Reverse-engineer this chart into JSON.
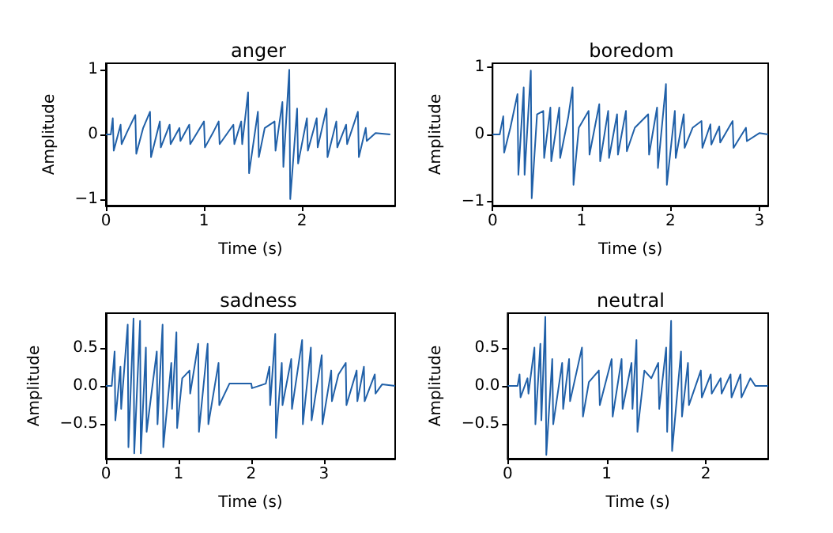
{
  "chart_data": [
    {
      "type": "line",
      "title": "anger",
      "xlabel": "Time (s)",
      "ylabel": "Amplitude",
      "xlim": [
        0,
        2.95
      ],
      "xticks": [
        0,
        1,
        2
      ],
      "ylim": [
        -1.1,
        1.1
      ],
      "yticks": [
        {
          "value": -1,
          "label": "−1"
        },
        0,
        1
      ],
      "grid": false,
      "marker": "none",
      "line_style": "solid",
      "series": [
        {
          "color": "#2060a8",
          "x": [
            0,
            0.05,
            0.07,
            0.08,
            0.15,
            0.16,
            0.22,
            0.3,
            0.31,
            0.38,
            0.45,
            0.46,
            0.55,
            0.56,
            0.65,
            0.66,
            0.75,
            0.76,
            0.85,
            0.86,
            0.92,
            1.0,
            1.01,
            1.1,
            1.15,
            1.16,
            1.3,
            1.31,
            1.38,
            1.39,
            1.45,
            1.46,
            1.55,
            1.56,
            1.62,
            1.72,
            1.73,
            1.8,
            1.81,
            1.87,
            1.88,
            1.95,
            1.96,
            2.05,
            2.06,
            2.15,
            2.16,
            2.25,
            2.26,
            2.35,
            2.36,
            2.45,
            2.46,
            2.57,
            2.58,
            2.65,
            2.66,
            2.75,
            2.9
          ],
          "values": [
            0,
            0,
            0.25,
            -0.25,
            0.15,
            -0.15,
            0.05,
            0.3,
            -0.3,
            0.1,
            0.35,
            -0.35,
            0.2,
            -0.2,
            0.15,
            -0.15,
            0.1,
            -0.1,
            0.15,
            -0.15,
            0,
            0.2,
            -0.2,
            0.05,
            0.2,
            -0.15,
            0.15,
            -0.15,
            0.2,
            -0.15,
            0.65,
            -0.6,
            0.35,
            -0.35,
            0.1,
            0.2,
            -0.25,
            0.5,
            -0.5,
            1.0,
            -1.0,
            0.4,
            -0.45,
            0.25,
            -0.25,
            0.25,
            -0.2,
            0.4,
            -0.35,
            0.2,
            -0.2,
            0.15,
            -0.15,
            0.35,
            -0.35,
            0.1,
            -0.1,
            0.02,
            0
          ]
        }
      ]
    },
    {
      "type": "line",
      "title": "boredom",
      "xlabel": "Time (s)",
      "ylabel": "Amplitude",
      "xlim": [
        0,
        3.1
      ],
      "xticks": [
        0,
        1,
        2,
        3
      ],
      "ylim": [
        -1.06,
        1.06
      ],
      "yticks": [
        {
          "value": -1,
          "label": "−1"
        },
        0,
        1
      ],
      "grid": false,
      "marker": "none",
      "line_style": "solid",
      "series": [
        {
          "color": "#2060a8",
          "x": [
            0,
            0.08,
            0.12,
            0.13,
            0.2,
            0.28,
            0.29,
            0.35,
            0.36,
            0.43,
            0.44,
            0.5,
            0.57,
            0.58,
            0.65,
            0.66,
            0.75,
            0.76,
            0.85,
            0.9,
            0.91,
            0.97,
            1.08,
            1.09,
            1.2,
            1.21,
            1.3,
            1.31,
            1.4,
            1.41,
            1.5,
            1.51,
            1.6,
            1.75,
            1.76,
            1.85,
            1.86,
            1.95,
            1.96,
            2.05,
            2.06,
            2.15,
            2.16,
            2.25,
            2.35,
            2.36,
            2.45,
            2.46,
            2.55,
            2.56,
            2.7,
            2.71,
            2.85,
            2.86,
            3.0,
            3.1
          ],
          "values": [
            0,
            0,
            0.27,
            -0.27,
            0.1,
            0.6,
            -0.6,
            0.7,
            -0.6,
            0.95,
            -0.95,
            0.3,
            0.35,
            -0.35,
            0.4,
            -0.4,
            0.4,
            -0.35,
            0.25,
            0.7,
            -0.75,
            0.1,
            0.35,
            -0.3,
            0.45,
            -0.4,
            0.35,
            -0.35,
            0.3,
            -0.3,
            0.35,
            -0.25,
            0.1,
            0.3,
            -0.3,
            0.4,
            -0.5,
            0.75,
            -0.75,
            0.35,
            -0.35,
            0.3,
            -0.2,
            0.1,
            0.2,
            -0.2,
            0.15,
            -0.15,
            0.12,
            -0.12,
            0.2,
            -0.2,
            0.1,
            -0.1,
            0.02,
            0
          ]
        }
      ]
    },
    {
      "type": "line",
      "title": "sadness",
      "xlabel": "Time (s)",
      "ylabel": "Amplitude",
      "xlim": [
        0,
        3.98
      ],
      "xticks": [
        0,
        1,
        2,
        3
      ],
      "ylim": [
        -0.95,
        0.95
      ],
      "yticks": [
        {
          "value": -0.5,
          "label": "−0.5"
        },
        {
          "value": 0,
          "label": "0.0"
        },
        0.5
      ],
      "grid": false,
      "marker": "none",
      "line_style": "solid",
      "series": [
        {
          "color": "#2060a8",
          "x": [
            0,
            0.08,
            0.12,
            0.13,
            0.2,
            0.21,
            0.3,
            0.31,
            0.38,
            0.39,
            0.47,
            0.48,
            0.55,
            0.56,
            0.7,
            0.71,
            0.78,
            0.79,
            0.9,
            0.91,
            0.97,
            0.98,
            1.05,
            1.15,
            1.16,
            1.27,
            1.28,
            1.4,
            1.41,
            1.55,
            1.56,
            1.7,
            2.0,
            2.01,
            2.2,
            2.25,
            2.26,
            2.33,
            2.34,
            2.42,
            2.43,
            2.55,
            2.56,
            2.7,
            2.71,
            2.82,
            2.83,
            2.97,
            2.98,
            3.1,
            3.11,
            3.2,
            3.3,
            3.31,
            3.45,
            3.46,
            3.55,
            3.56,
            3.7,
            3.71,
            3.8,
            3.98
          ],
          "values": [
            0,
            0,
            0.45,
            -0.45,
            0.25,
            -0.3,
            0.8,
            -0.8,
            0.88,
            -0.88,
            0.85,
            -0.88,
            0.5,
            -0.6,
            0.45,
            -0.5,
            0.8,
            -0.8,
            0.3,
            -0.3,
            0.7,
            -0.55,
            0.1,
            0.2,
            -0.1,
            0.55,
            -0.6,
            0.55,
            -0.5,
            0.3,
            -0.25,
            0.03,
            0.03,
            -0.03,
            0.03,
            0.25,
            -0.25,
            0.68,
            -0.68,
            0.3,
            -0.25,
            0.35,
            -0.3,
            0.6,
            -0.5,
            0.5,
            -0.45,
            0.4,
            -0.5,
            0.2,
            -0.2,
            0.15,
            0.3,
            -0.25,
            0.2,
            -0.2,
            0.25,
            -0.2,
            0.15,
            -0.1,
            0.02,
            0
          ]
        }
      ]
    },
    {
      "type": "line",
      "title": "neutral",
      "xlabel": "Time (s)",
      "ylabel": "Amplitude",
      "xlim": [
        0,
        2.63
      ],
      "xticks": [
        0,
        1,
        2
      ],
      "ylim": [
        -0.95,
        0.95
      ],
      "yticks": [
        {
          "value": -0.5,
          "label": "−0.5"
        },
        {
          "value": 0,
          "label": "0.0"
        },
        0.5
      ],
      "grid": false,
      "marker": "none",
      "line_style": "solid",
      "series": [
        {
          "color": "#2060a8",
          "x": [
            0,
            0.1,
            0.12,
            0.13,
            0.2,
            0.21,
            0.27,
            0.28,
            0.33,
            0.34,
            0.38,
            0.39,
            0.45,
            0.46,
            0.55,
            0.56,
            0.62,
            0.63,
            0.75,
            0.76,
            0.82,
            0.92,
            0.93,
            1.05,
            1.06,
            1.15,
            1.16,
            1.25,
            1.26,
            1.3,
            1.31,
            1.38,
            1.45,
            1.52,
            1.53,
            1.6,
            1.61,
            1.65,
            1.66,
            1.75,
            1.76,
            1.82,
            1.83,
            1.95,
            1.96,
            2.05,
            2.06,
            2.15,
            2.16,
            2.25,
            2.26,
            2.35,
            2.36,
            2.45,
            2.5,
            2.63
          ],
          "values": [
            0,
            0,
            0.15,
            -0.15,
            0.1,
            -0.1,
            0.5,
            -0.5,
            0.55,
            -0.45,
            0.9,
            -0.9,
            0.35,
            -0.5,
            0.3,
            -0.3,
            0.35,
            -0.2,
            0.5,
            -0.4,
            0.05,
            0.2,
            -0.25,
            0.35,
            -0.4,
            0.35,
            -0.3,
            0.3,
            -0.3,
            0.6,
            -0.6,
            0.2,
            0.1,
            0.3,
            -0.3,
            0.5,
            -0.6,
            0.85,
            -0.85,
            0.45,
            -0.4,
            0.3,
            -0.25,
            0.2,
            -0.15,
            0.15,
            -0.1,
            0.1,
            -0.1,
            0.15,
            -0.15,
            0.15,
            -0.15,
            0.1,
            0,
            0
          ]
        }
      ]
    }
  ]
}
